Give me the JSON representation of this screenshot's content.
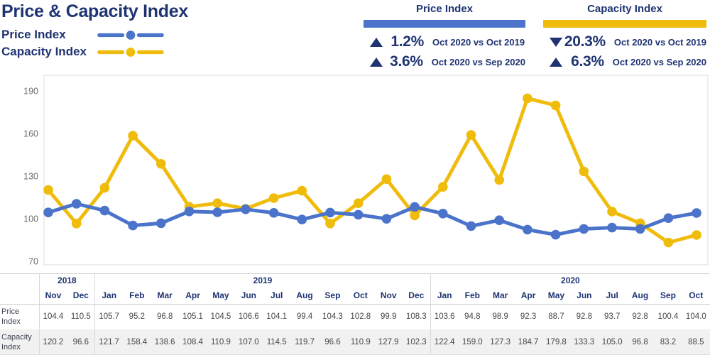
{
  "title": "Price & Capacity Index",
  "colors": {
    "navy": "#1F3372",
    "price_blue": "#4A73C9",
    "capacity_yellow": "#F0BC0C",
    "axis_gray": "#6E6E6E",
    "value_gray": "#474747",
    "border_gray": "#D9D9D9",
    "capacity_row_bg": "#F1F1F2"
  },
  "legend": [
    {
      "label": "Price Index",
      "series": "price",
      "color": "#4A73C9"
    },
    {
      "label": "Capacity Index",
      "series": "capacity",
      "color": "#F0BC0C"
    }
  ],
  "summary": {
    "price": {
      "title": "Price Index",
      "color": "#4A73C9",
      "rows": [
        {
          "direction": "up",
          "value": "1.2%",
          "label": "Oct 2020 vs Oct 2019"
        },
        {
          "direction": "up",
          "value": "3.6%",
          "label": "Oct 2020 vs Sep 2020"
        }
      ]
    },
    "capacity": {
      "title": "Capacity Index",
      "color": "#F0BC0C",
      "rows": [
        {
          "direction": "down",
          "value": "20.3%",
          "label": "Oct 2020 vs Oct 2019"
        },
        {
          "direction": "up",
          "value": "6.3%",
          "label": "Oct 2020 vs Sep 2020"
        }
      ]
    }
  },
  "chart_data": {
    "type": "line",
    "title": "Price & Capacity Index",
    "x": [
      "Nov 2018",
      "Dec 2018",
      "Jan 2019",
      "Feb 2019",
      "Mar 2019",
      "Apr 2019",
      "May 2019",
      "Jun 2019",
      "Jul 2019",
      "Aug 2019",
      "Sep 2019",
      "Oct 2019",
      "Nov 2019",
      "Dec 2019",
      "Jan 2020",
      "Feb 2020",
      "Mar 2020",
      "Apr 2020",
      "May 2020",
      "Jun 2020",
      "Jul 2020",
      "Aug 2020",
      "Sep 2020",
      "Oct 2020"
    ],
    "series": [
      {
        "name": "Price Index",
        "color": "#4A73C9",
        "values": [
          104.4,
          110.5,
          105.7,
          95.2,
          96.8,
          105.1,
          104.5,
          106.6,
          104.1,
          99.4,
          104.3,
          102.8,
          99.9,
          108.3,
          103.6,
          94.8,
          98.9,
          92.3,
          88.7,
          92.8,
          93.7,
          92.8,
          100.4,
          104.0
        ]
      },
      {
        "name": "Capacity Index",
        "color": "#F0BC0C",
        "values": [
          120.2,
          96.6,
          121.7,
          158.4,
          138.6,
          108.4,
          110.9,
          107.0,
          114.5,
          119.7,
          96.6,
          110.9,
          127.9,
          102.3,
          122.4,
          159.0,
          127.3,
          184.7,
          179.8,
          133.3,
          105.0,
          96.8,
          83.2,
          88.5
        ]
      }
    ],
    "ylim": [
      70,
      190
    ],
    "yticks": [
      70,
      100,
      130,
      160,
      190
    ],
    "grid": false,
    "legend_position": "top-left",
    "xlabel": "",
    "ylabel": ""
  },
  "table": {
    "year_groups": [
      {
        "label": "2018",
        "span": 2
      },
      {
        "label": "2019",
        "span": 12
      },
      {
        "label": "2020",
        "span": 10
      }
    ],
    "months": [
      "Nov",
      "Dec",
      "Jan",
      "Feb",
      "Mar",
      "Apr",
      "May",
      "Jun",
      "Jul",
      "Aug",
      "Sep",
      "Oct",
      "Nov",
      "Dec",
      "Jan",
      "Feb",
      "Mar",
      "Apr",
      "May",
      "Jun",
      "Jul",
      "Aug",
      "Sep",
      "Oct"
    ],
    "rows": [
      {
        "key": "price",
        "label": "Price Index",
        "values": [
          "104.4",
          "110.5",
          "105.7",
          "95.2",
          "96.8",
          "105.1",
          "104.5",
          "106.6",
          "104.1",
          "99.4",
          "104.3",
          "102.8",
          "99.9",
          "108.3",
          "103.6",
          "94.8",
          "98.9",
          "92.3",
          "88.7",
          "92.8",
          "93.7",
          "92.8",
          "100.4",
          "104.0"
        ]
      },
      {
        "key": "capacity",
        "label": "Capacity Index",
        "values": [
          "120.2",
          "96.6",
          "121.7",
          "158.4",
          "138.6",
          "108.4",
          "110.9",
          "107.0",
          "114.5",
          "119.7",
          "96.6",
          "110.9",
          "127.9",
          "102.3",
          "122.4",
          "159.0",
          "127.3",
          "184.7",
          "179.8",
          "133.3",
          "105.0",
          "96.8",
          "83.2",
          "88.5"
        ]
      }
    ]
  }
}
